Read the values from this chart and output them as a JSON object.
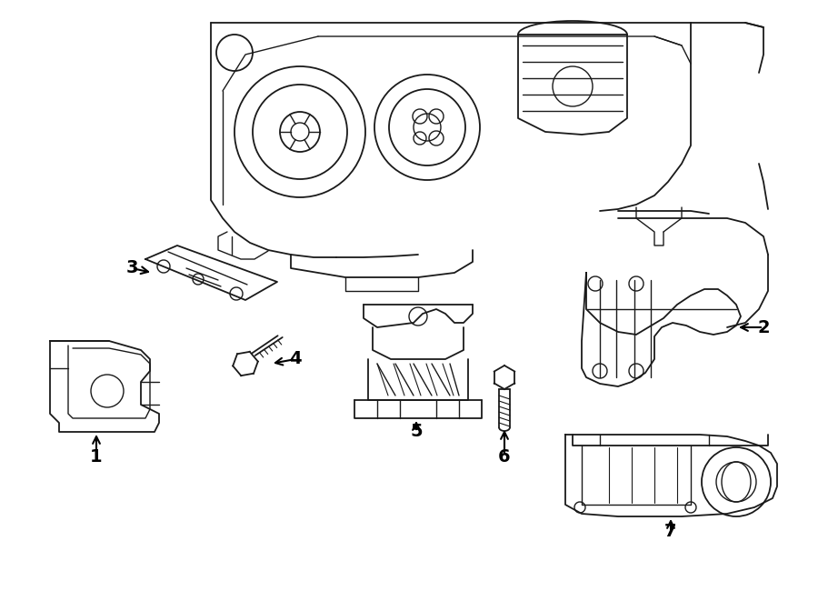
{
  "bg_color": "#ffffff",
  "line_color": "#1a1a1a",
  "fig_width": 9.0,
  "fig_height": 6.61,
  "dpi": 100,
  "engine_color": "#111111",
  "label_fontsize": 14,
  "label_fontweight": "bold"
}
